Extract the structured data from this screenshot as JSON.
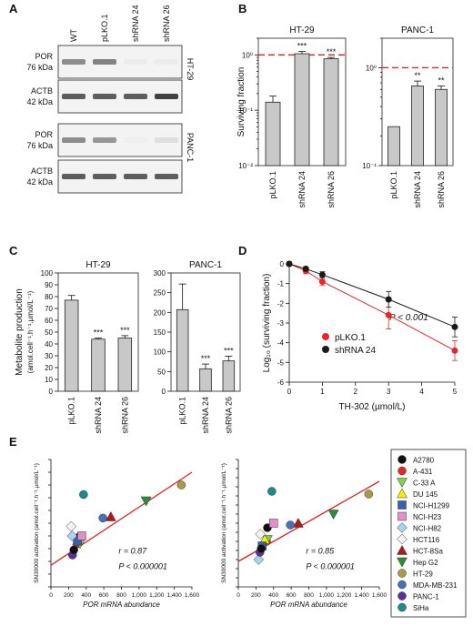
{
  "panels": {
    "A": "A",
    "B": "B",
    "C": "C",
    "D": "D",
    "E": "E"
  },
  "western": {
    "lanes": [
      "WT",
      "pLKO.1",
      "shRNA 24",
      "shRNA 26"
    ],
    "blocks": [
      {
        "name": "POR",
        "size": "76 kDa",
        "cell": "HT-29",
        "bands": [
          0.55,
          0.6,
          0.05,
          0.05
        ]
      },
      {
        "name": "ACTB",
        "size": "42 kDa",
        "cell": "",
        "bands": [
          0.8,
          0.8,
          0.8,
          0.95
        ]
      },
      {
        "name": "POR",
        "size": "76 kDa",
        "cell": "PANC-1",
        "bands": [
          0.55,
          0.5,
          0.03,
          0.12
        ]
      },
      {
        "name": "ACTB",
        "size": "42 kDa",
        "cell": "",
        "bands": [
          0.8,
          0.8,
          0.8,
          0.8
        ]
      }
    ]
  },
  "chart_data": [
    {
      "panel": "B",
      "type": "bar",
      "title": "HT-29",
      "ylabel": "Surviving fraction",
      "yscale": "log",
      "ylim": [
        0.01,
        2
      ],
      "yticks": [
        "10⁻²",
        "10⁻¹",
        "10⁰"
      ],
      "categories": [
        "pLKO.1",
        "shRNA 24",
        "shRNA 26"
      ],
      "values": [
        0.14,
        1.05,
        0.85
      ],
      "errors": [
        0.04,
        0.1,
        0.05
      ],
      "stars": [
        "",
        "***",
        "***"
      ],
      "reference_line": 1
    },
    {
      "panel": "B",
      "type": "bar",
      "title": "PANC-1",
      "ylabel": "",
      "yscale": "log",
      "ylim": [
        0.1,
        2
      ],
      "yticks": [
        "10⁻¹",
        "10⁰"
      ],
      "categories": [
        "pLKO.1",
        "shRNA 24",
        "shRNA 26"
      ],
      "values": [
        0.25,
        0.65,
        0.6
      ],
      "errors": [
        0,
        0.08,
        0.05
      ],
      "stars": [
        "",
        "**",
        "**"
      ],
      "reference_line": 1
    },
    {
      "panel": "C",
      "type": "bar",
      "title": "HT-29",
      "ylabel": "Metabolite production",
      "ylabel2": "(amol.cell⁻¹.h⁻¹.µmol/L⁻¹)",
      "ylim": [
        0,
        100
      ],
      "yticks": [
        0,
        10,
        20,
        30,
        40,
        50,
        60,
        70,
        80,
        90,
        100
      ],
      "categories": [
        "pLKO.1",
        "shRNA 24",
        "shRNA 26"
      ],
      "values": [
        77,
        44,
        45
      ],
      "errors": [
        4,
        1,
        2
      ],
      "stars": [
        "",
        "***",
        "***"
      ]
    },
    {
      "panel": "C",
      "type": "bar",
      "title": "PANC-1",
      "ylabel": "",
      "ylim": [
        0,
        300
      ],
      "yticks": [
        0,
        50,
        100,
        150,
        200,
        250,
        300
      ],
      "categories": [
        "pLKO.1",
        "shRNA 24",
        "shRNA 26"
      ],
      "values": [
        207,
        57,
        77
      ],
      "errors": [
        65,
        12,
        12
      ],
      "stars": [
        "",
        "***",
        "***"
      ]
    },
    {
      "panel": "D",
      "type": "line",
      "xlabel": "TH-302 (µmol/L)",
      "ylabel": "Log₁₀ (surviving fraction)",
      "xlim": [
        0,
        5
      ],
      "ylim": [
        -6,
        0
      ],
      "xticks": [
        0,
        1,
        2,
        3,
        4,
        5
      ],
      "yticks": [
        0,
        -1,
        -2,
        -3,
        -4,
        -5,
        -6
      ],
      "annotation": "P < 0.001",
      "series": [
        {
          "name": "pLKO.1",
          "color": "#e8262a",
          "x": [
            0,
            0.5,
            1,
            3,
            5
          ],
          "y": [
            0,
            -0.35,
            -0.9,
            -2.6,
            -4.4
          ],
          "err": [
            0.1,
            0.15,
            0.2,
            0.7,
            0.5
          ]
        },
        {
          "name": "shRNA 24",
          "color": "#1a1a1a",
          "x": [
            0,
            0.5,
            1,
            3,
            5
          ],
          "y": [
            0,
            -0.25,
            -0.55,
            -1.8,
            -3.2
          ],
          "err": [
            0.1,
            0.1,
            0.15,
            0.4,
            0.5
          ]
        }
      ]
    },
    {
      "panel": "E",
      "type": "scatter",
      "xlabel": "POR mRNA abundance",
      "ylabel": "SN30000 activation (amol.cell⁻¹.h⁻¹.µmol/L⁻¹)",
      "xlim": [
        0,
        1600
      ],
      "ylim": [
        0,
        200
      ],
      "xticks": [
        "0",
        "200",
        "400",
        "600",
        "800",
        "1,000",
        "1,200",
        "1,400",
        "1,600"
      ],
      "yticks": [
        0,
        20,
        40,
        60,
        80,
        100,
        120,
        140,
        160,
        180,
        200
      ],
      "stat_r": "r = 0.87",
      "stat_p": "P < 0.000001",
      "fit": [
        [
          0,
          34
        ],
        [
          1600,
          180
        ]
      ],
      "points": [
        [
          330,
          80
        ],
        [
          300,
          68
        ],
        [
          330,
          68
        ],
        [
          300,
          72
        ],
        [
          300,
          72
        ],
        [
          350,
          80
        ],
        [
          240,
          80
        ],
        [
          230,
          95
        ],
        [
          680,
          110
        ],
        [
          1080,
          135
        ],
        [
          1480,
          160
        ],
        [
          590,
          108
        ],
        [
          245,
          50
        ],
        [
          370,
          145
        ],
        [
          260,
          58
        ]
      ]
    },
    {
      "panel": "E",
      "type": "scatter",
      "xlabel": "POR mRNA abundance",
      "ylabel": "SN30000 activation (amol.cell⁻¹.h⁻¹.µmol/L⁻¹)",
      "xlim": [
        0,
        1600
      ],
      "ylim": [
        0,
        140
      ],
      "xticks": [
        "0",
        "200",
        "400",
        "600",
        "800",
        "1,000",
        "1,200",
        "1,400",
        "1,600"
      ],
      "yticks": [
        0,
        10,
        20,
        30,
        40,
        50,
        60,
        70,
        80,
        90,
        100,
        110,
        120,
        130,
        140
      ],
      "stat_r": "r = 0.85",
      "stat_p": "P < 0.000001",
      "fit": [
        [
          0,
          28
        ],
        [
          1600,
          116
        ]
      ],
      "points": [
        [
          330,
          65
        ],
        [
          320,
          50
        ],
        [
          330,
          52
        ],
        [
          300,
          52
        ],
        [
          270,
          45
        ],
        [
          400,
          70
        ],
        [
          230,
          30
        ],
        [
          250,
          58
        ],
        [
          680,
          70
        ],
        [
          1080,
          80
        ],
        [
          1480,
          102
        ],
        [
          590,
          68
        ],
        [
          245,
          38
        ],
        [
          380,
          105
        ],
        [
          260,
          42
        ]
      ]
    }
  ],
  "legend": [
    {
      "name": "A2780",
      "color": "#111111",
      "shape": "circle"
    },
    {
      "name": "A-431",
      "color": "#e8262a",
      "shape": "circle"
    },
    {
      "name": "C-33 A",
      "color": "#7fd14a",
      "shape": "triangle-down"
    },
    {
      "name": "DU 145",
      "color": "#f4f200",
      "shape": "triangle-up"
    },
    {
      "name": "NCI-H1299",
      "color": "#3a5fb0",
      "shape": "square"
    },
    {
      "name": "NCI-H23",
      "color": "#e58fc8",
      "shape": "square"
    },
    {
      "name": "NCI-H82",
      "color": "#a4d6ef",
      "shape": "diamond"
    },
    {
      "name": "HCT116",
      "color": "#f2f2f2",
      "shape": "diamond"
    },
    {
      "name": "HCT-8Sa",
      "color": "#b01a1a",
      "shape": "triangle-up"
    },
    {
      "name": "Hep G2",
      "color": "#2b8f3a",
      "shape": "triangle-down"
    },
    {
      "name": "HT-29",
      "color": "#a89a48",
      "shape": "circle"
    },
    {
      "name": "MDA-MB-231",
      "color": "#4a6fb8",
      "shape": "circle"
    },
    {
      "name": "PANC-1",
      "color": "#5a2fa0",
      "shape": "circle"
    },
    {
      "name": "SiHa",
      "color": "#1f8a8a",
      "shape": "circle"
    }
  ]
}
